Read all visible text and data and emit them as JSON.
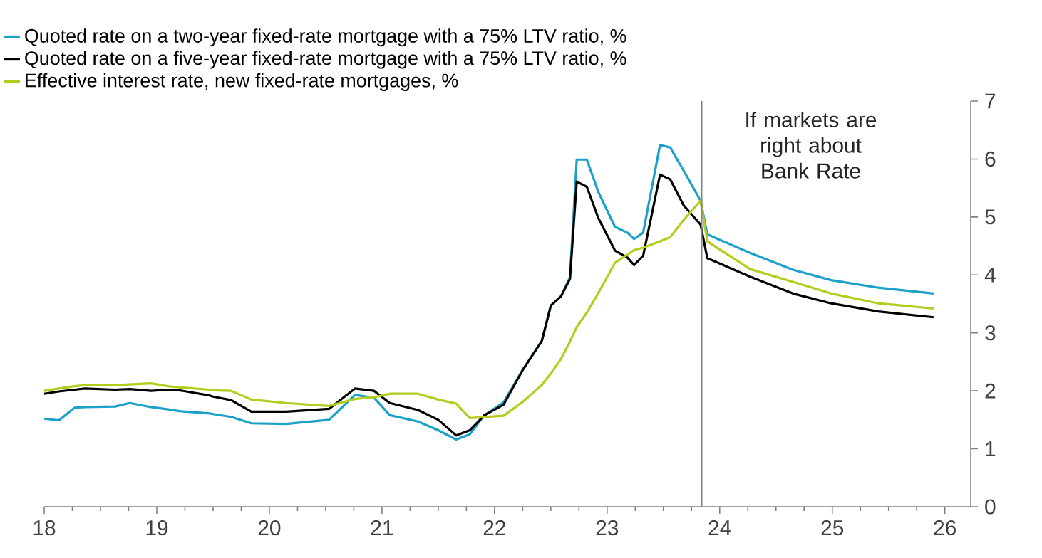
{
  "chart_data": {
    "type": "line",
    "x": [
      18.0,
      18.13,
      18.27,
      18.36,
      18.63,
      18.76,
      18.95,
      19.1,
      19.2,
      19.47,
      19.5,
      19.66,
      19.84,
      20.15,
      20.53,
      20.76,
      20.93,
      21.07,
      21.32,
      21.5,
      21.66,
      21.78,
      21.91,
      22.08,
      22.25,
      22.42,
      22.5,
      22.59,
      22.67,
      22.73,
      22.82,
      22.92,
      23.07,
      23.18,
      23.24,
      23.32,
      23.47,
      23.56,
      23.68,
      23.83,
      23.89,
      24.27,
      24.65,
      24.99,
      25.41,
      25.9
    ],
    "series": [
      {
        "name": "Quoted rate on a two-year fixed-rate mortgage with a 75% LTV ratio, %",
        "color": "#1ba1c9",
        "values": [
          1.52,
          1.49,
          1.71,
          1.72,
          1.73,
          1.79,
          1.72,
          1.68,
          1.65,
          1.61,
          1.6,
          1.55,
          1.44,
          1.43,
          1.5,
          1.93,
          1.88,
          1.58,
          1.47,
          1.32,
          1.16,
          1.25,
          1.58,
          1.8,
          2.36,
          2.86,
          3.47,
          3.63,
          3.96,
          5.99,
          5.99,
          5.44,
          4.83,
          4.73,
          4.62,
          4.73,
          6.24,
          6.2,
          5.8,
          5.28,
          4.7,
          4.38,
          4.09,
          3.91,
          3.78,
          3.68
        ]
      },
      {
        "name": "Quoted rate on a five-year fixed-rate mortgage with a 75% LTV ratio, %",
        "color": "#000000",
        "values": [
          1.95,
          1.99,
          2.02,
          2.04,
          2.02,
          2.03,
          2.0,
          2.02,
          2.01,
          1.92,
          1.9,
          1.84,
          1.64,
          1.64,
          1.69,
          2.04,
          2.0,
          1.79,
          1.67,
          1.5,
          1.23,
          1.32,
          1.58,
          1.76,
          2.36,
          2.86,
          3.47,
          3.63,
          3.93,
          5.61,
          5.52,
          4.99,
          4.42,
          4.3,
          4.17,
          4.33,
          5.73,
          5.65,
          5.2,
          4.87,
          4.29,
          3.97,
          3.68,
          3.51,
          3.37,
          3.27
        ]
      },
      {
        "name": "Effective interest rate, new fixed-rate mortgages, %",
        "color": "#b5cc1c",
        "values": [
          2.0,
          2.04,
          2.08,
          2.1,
          2.1,
          2.11,
          2.13,
          2.08,
          2.06,
          2.02,
          2.01,
          2.0,
          1.85,
          1.79,
          1.74,
          1.86,
          1.89,
          1.95,
          1.95,
          1.85,
          1.78,
          1.53,
          1.55,
          1.57,
          1.81,
          2.1,
          2.3,
          2.55,
          2.85,
          3.1,
          3.35,
          3.68,
          4.21,
          4.35,
          4.43,
          4.47,
          4.58,
          4.65,
          4.95,
          5.28,
          4.58,
          4.1,
          3.88,
          3.68,
          3.51,
          3.42
        ]
      }
    ],
    "xlim": [
      18,
      26.23
    ],
    "xticks": [
      18,
      19,
      20,
      21,
      22,
      23,
      24,
      25,
      26
    ],
    "ylim": [
      0,
      7
    ],
    "yticks": [
      0,
      1,
      2,
      3,
      4,
      5,
      6,
      7
    ],
    "ref_lines": [
      {
        "axis": "x",
        "value": 23.84,
        "color": "#808080",
        "label": "If markets are right about Bank Rate"
      }
    ],
    "legend": "top left",
    "grid": false,
    "marker": "none",
    "line_style": "solid"
  }
}
